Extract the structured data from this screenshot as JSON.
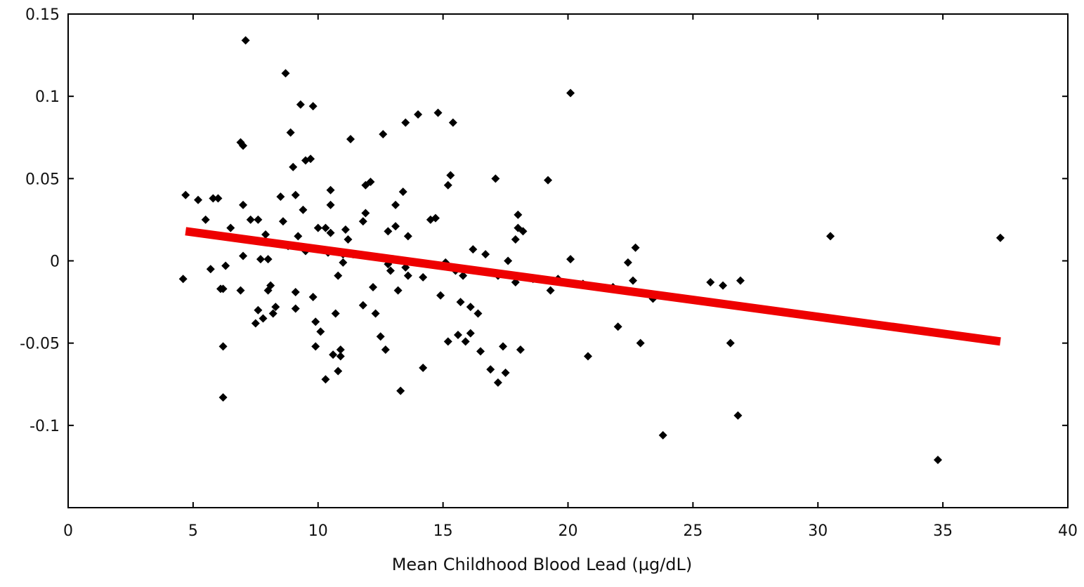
{
  "chart_data": {
    "type": "scatter",
    "xlabel": "Mean Childhood Blood Lead (µg/dL)",
    "ylabel": "",
    "xlim": [
      0,
      40
    ],
    "ylim": [
      -0.15,
      0.15
    ],
    "x_ticks": [
      0,
      5,
      10,
      15,
      20,
      25,
      30,
      35,
      40
    ],
    "x_tick_labels": [
      "0",
      "5",
      "10",
      "15",
      "20",
      "25",
      "30",
      "35",
      "40"
    ],
    "y_ticks": [
      -0.1,
      -0.05,
      0,
      0.05,
      0.1,
      0.15
    ],
    "y_tick_labels": [
      "-0.1",
      "-0.05",
      "0",
      "0.05",
      "0.1",
      "0.15"
    ],
    "grid": false,
    "colors": {
      "points": "#000000",
      "fit_line": "#ee0000",
      "axes": "#000000"
    },
    "series": [
      {
        "type": "scatter",
        "marker": "diamond",
        "points": [
          [
            4.7,
            0.04
          ],
          [
            4.6,
            -0.011
          ],
          [
            5.2,
            0.037
          ],
          [
            5.5,
            0.025
          ],
          [
            5.7,
            -0.005
          ],
          [
            5.8,
            0.038
          ],
          [
            6.0,
            0.038
          ],
          [
            6.1,
            -0.017
          ],
          [
            6.2,
            -0.017
          ],
          [
            6.2,
            -0.052
          ],
          [
            6.2,
            -0.083
          ],
          [
            6.3,
            -0.003
          ],
          [
            6.5,
            0.02
          ],
          [
            6.9,
            0.072
          ],
          [
            7.0,
            0.07
          ],
          [
            7.1,
            0.134
          ],
          [
            6.9,
            -0.018
          ],
          [
            7.0,
            0.003
          ],
          [
            7.0,
            0.034
          ],
          [
            7.3,
            0.025
          ],
          [
            7.5,
            -0.038
          ],
          [
            7.6,
            -0.03
          ],
          [
            7.6,
            0.025
          ],
          [
            7.7,
            0.001
          ],
          [
            7.8,
            -0.035
          ],
          [
            7.9,
            0.016
          ],
          [
            8.0,
            0.001
          ],
          [
            8.0,
            -0.018
          ],
          [
            8.1,
            -0.015
          ],
          [
            8.2,
            -0.032
          ],
          [
            8.3,
            -0.028
          ],
          [
            8.5,
            0.039
          ],
          [
            8.6,
            0.024
          ],
          [
            8.7,
            0.114
          ],
          [
            8.8,
            0.009
          ],
          [
            8.9,
            0.078
          ],
          [
            9.0,
            0.057
          ],
          [
            9.1,
            0.04
          ],
          [
            9.1,
            -0.019
          ],
          [
            9.1,
            -0.029
          ],
          [
            9.2,
            0.015
          ],
          [
            9.3,
            0.095
          ],
          [
            9.4,
            0.031
          ],
          [
            9.5,
            0.061
          ],
          [
            9.5,
            0.006
          ],
          [
            9.7,
            0.062
          ],
          [
            9.8,
            0.094
          ],
          [
            9.8,
            -0.022
          ],
          [
            9.9,
            -0.037
          ],
          [
            9.9,
            -0.052
          ],
          [
            10.0,
            0.02
          ],
          [
            10.1,
            -0.043
          ],
          [
            10.3,
            -0.072
          ],
          [
            10.3,
            0.02
          ],
          [
            10.4,
            0.005
          ],
          [
            10.5,
            0.043
          ],
          [
            10.5,
            0.034
          ],
          [
            10.5,
            0.017
          ],
          [
            10.6,
            -0.057
          ],
          [
            10.7,
            -0.032
          ],
          [
            10.8,
            -0.067
          ],
          [
            10.8,
            -0.009
          ],
          [
            10.9,
            -0.054
          ],
          [
            10.9,
            -0.058
          ],
          [
            11.0,
            -0.001
          ],
          [
            11.0,
            0.004
          ],
          [
            11.1,
            0.019
          ],
          [
            11.2,
            0.013
          ],
          [
            11.3,
            0.074
          ],
          [
            11.4,
            0.004
          ],
          [
            11.8,
            0.024
          ],
          [
            11.8,
            -0.027
          ],
          [
            11.9,
            0.029
          ],
          [
            11.9,
            0.046
          ],
          [
            12.1,
            0.048
          ],
          [
            12.2,
            -0.016
          ],
          [
            12.3,
            -0.032
          ],
          [
            12.5,
            -0.046
          ],
          [
            12.6,
            0.077
          ],
          [
            12.7,
            -0.054
          ],
          [
            12.8,
            0.018
          ],
          [
            12.8,
            -0.002
          ],
          [
            12.9,
            -0.006
          ],
          [
            13.0,
            0.001
          ],
          [
            13.1,
            0.034
          ],
          [
            13.1,
            0.021
          ],
          [
            13.2,
            -0.018
          ],
          [
            13.3,
            -0.079
          ],
          [
            13.4,
            0.042
          ],
          [
            13.5,
            0.084
          ],
          [
            13.5,
            -0.004
          ],
          [
            13.6,
            -0.009
          ],
          [
            13.6,
            0.015
          ],
          [
            14.0,
            0.089
          ],
          [
            14.2,
            -0.065
          ],
          [
            14.2,
            -0.01
          ],
          [
            14.5,
            0.025
          ],
          [
            14.7,
            0.026
          ],
          [
            14.8,
            0.09
          ],
          [
            14.9,
            -0.021
          ],
          [
            15.1,
            -0.001
          ],
          [
            15.2,
            -0.049
          ],
          [
            15.2,
            0.046
          ],
          [
            15.3,
            0.052
          ],
          [
            15.4,
            0.084
          ],
          [
            15.5,
            -0.006
          ],
          [
            15.6,
            -0.045
          ],
          [
            15.7,
            -0.025
          ],
          [
            15.8,
            -0.009
          ],
          [
            15.9,
            -0.049
          ],
          [
            16.1,
            -0.044
          ],
          [
            16.1,
            -0.028
          ],
          [
            16.2,
            0.007
          ],
          [
            16.4,
            -0.032
          ],
          [
            16.5,
            -0.055
          ],
          [
            16.7,
            0.004
          ],
          [
            16.9,
            -0.066
          ],
          [
            17.1,
            0.05
          ],
          [
            17.2,
            -0.074
          ],
          [
            17.2,
            -0.009
          ],
          [
            17.4,
            -0.052
          ],
          [
            17.5,
            -0.068
          ],
          [
            17.6,
            0.0
          ],
          [
            18.0,
            0.028
          ],
          [
            18.0,
            0.02
          ],
          [
            17.9,
            0.013
          ],
          [
            17.9,
            -0.013
          ],
          [
            18.1,
            -0.054
          ],
          [
            18.2,
            0.018
          ],
          [
            18.6,
            -0.011
          ],
          [
            19.2,
            0.049
          ],
          [
            19.3,
            -0.018
          ],
          [
            19.6,
            -0.011
          ],
          [
            20.1,
            0.102
          ],
          [
            20.1,
            0.001
          ],
          [
            20.6,
            -0.014
          ],
          [
            20.8,
            -0.058
          ],
          [
            21.8,
            -0.016
          ],
          [
            22.0,
            -0.04
          ],
          [
            22.4,
            -0.001
          ],
          [
            22.6,
            -0.012
          ],
          [
            22.7,
            0.008
          ],
          [
            22.9,
            -0.05
          ],
          [
            23.4,
            -0.023
          ],
          [
            23.8,
            -0.106
          ],
          [
            25.7,
            -0.013
          ],
          [
            26.2,
            -0.015
          ],
          [
            26.5,
            -0.05
          ],
          [
            26.8,
            -0.094
          ],
          [
            26.9,
            -0.012
          ],
          [
            30.5,
            0.015
          ],
          [
            34.8,
            -0.121
          ],
          [
            37.3,
            0.014
          ]
        ]
      },
      {
        "type": "line",
        "style": "regression-fit",
        "x": [
          4.7,
          37.3
        ],
        "y": [
          0.018,
          -0.049
        ]
      }
    ]
  }
}
